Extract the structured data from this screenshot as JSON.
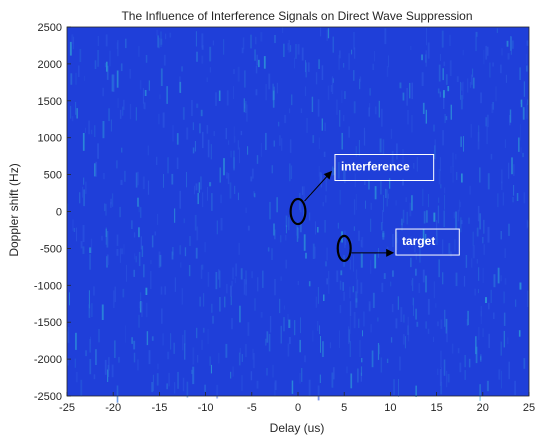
{
  "chart_data": {
    "type": "heatmap",
    "title": "The Influence of Interference Signals on Direct Wave Suppression",
    "xlabel": "Delay (us)",
    "ylabel": "Doppler shift (Hz)",
    "xlim": [
      -25,
      25
    ],
    "ylim": [
      -2500,
      2500
    ],
    "xticks": [
      -25,
      -20,
      -15,
      -10,
      -5,
      0,
      5,
      10,
      15,
      20,
      25
    ],
    "yticks": [
      2500,
      2000,
      1500,
      1000,
      500,
      0,
      -500,
      -1000,
      -1500,
      -2000,
      -2500
    ],
    "background_color": "#1f3fd9",
    "noise_color": "#2fa3d8",
    "annotations": [
      {
        "label": "interference",
        "ellipse_center": [
          0,
          0
        ],
        "ellipse_radii": [
          0.8,
          170
        ],
        "arrow_from": [
          0.7,
          140
        ],
        "arrow_to": [
          3.6,
          540
        ],
        "text_anchor": [
          4.0,
          420
        ]
      },
      {
        "label": "target",
        "ellipse_center": [
          5,
          -500
        ],
        "ellipse_radii": [
          0.7,
          170
        ],
        "arrow_from": [
          5.8,
          -560
        ],
        "arrow_to": [
          10.3,
          -560
        ],
        "text_anchor": [
          10.6,
          -590
        ]
      }
    ],
    "grid": false
  }
}
